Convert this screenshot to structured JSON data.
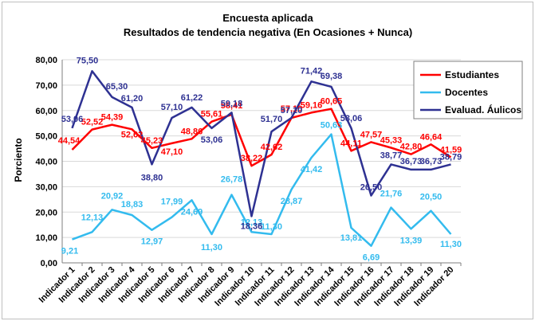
{
  "chart_data": {
    "type": "line",
    "title": "Encuesta aplicada",
    "subtitle": "Resultados de tendencia negativa (En Ocasiones + Nunca)",
    "xlabel": "",
    "ylabel": "Porciento",
    "ylim": [
      0,
      80
    ],
    "yticks": [
      "0,00",
      "10,00",
      "20,00",
      "30,00",
      "40,00",
      "50,00",
      "60,00",
      "70,00",
      "80,00"
    ],
    "grid": true,
    "legend_position": "right",
    "categories": [
      "Indicador 1",
      "Indicador 2",
      "Indicador 3",
      "Indicador 4",
      "Indicador 5",
      "Indicador 6",
      "Indicador 7",
      "Indicador 8",
      "Indicador 9",
      "Indicador 10",
      "Indicador 11",
      "Indicador 12",
      "Indicador 13",
      "Indicador 14",
      "Indicador 15",
      "Indicador 16",
      "Indicador 17",
      "Indicador 18",
      "Indicador 19",
      "Indicador 20"
    ],
    "series": [
      {
        "name": "Estudiantes",
        "color": "#ff0000",
        "values": [
          44.54,
          52.52,
          54.39,
          52.62,
          45.23,
          47.1,
          48.86,
          55.61,
          58.41,
          38.22,
          42.62,
          57.1,
          59.16,
          60.65,
          44.11,
          47.57,
          45.33,
          42.8,
          46.64,
          41.59
        ],
        "labels": [
          "44,54",
          "52,52",
          "54,39",
          "52,62",
          "45,23",
          "47,10",
          "48,86",
          "55,61",
          "58,41",
          "38,22",
          "42,62",
          "57,10",
          "59,16",
          "60,65",
          "44,11",
          "47,57",
          "45,33",
          "42,80",
          "46,64",
          "41,59"
        ]
      },
      {
        "name": "Docentes",
        "color": "#33bbee",
        "values": [
          9.21,
          12.13,
          20.92,
          18.83,
          12.97,
          17.99,
          24.69,
          11.3,
          26.78,
          12.13,
          11.3,
          28.87,
          41.42,
          50.63,
          13.81,
          6.69,
          21.76,
          13.39,
          20.5,
          11.3
        ],
        "labels": [
          "9,21",
          "12,13",
          "20,92",
          "18,83",
          "12,97",
          "17,99",
          "24,69",
          "11,30",
          "26,78",
          "12,13",
          "11,30",
          "28,87",
          "41,42",
          "50,63",
          "13,81",
          "6,69",
          "21,76",
          "13,39",
          "20,50",
          "11,30"
        ]
      },
      {
        "name": "Evaluad. Áulicos",
        "color": "#2e3192",
        "values": [
          53.06,
          75.5,
          65.3,
          61.2,
          38.8,
          57.1,
          61.22,
          53.06,
          59.18,
          18.36,
          51.7,
          57.1,
          71.42,
          69.38,
          53.06,
          26.5,
          38.77,
          36.73,
          36.73,
          38.79
        ],
        "labels": [
          "53,06",
          "75,50",
          "65,30",
          "61,20",
          "38,80",
          "57,10",
          "61,22",
          "53,06",
          "59,18",
          "18,36",
          "51,70",
          "57,10",
          "71,42",
          "69,38",
          "53,06",
          "26,50",
          "38,77",
          "36,73",
          "36,73",
          "38,79"
        ]
      }
    ]
  }
}
